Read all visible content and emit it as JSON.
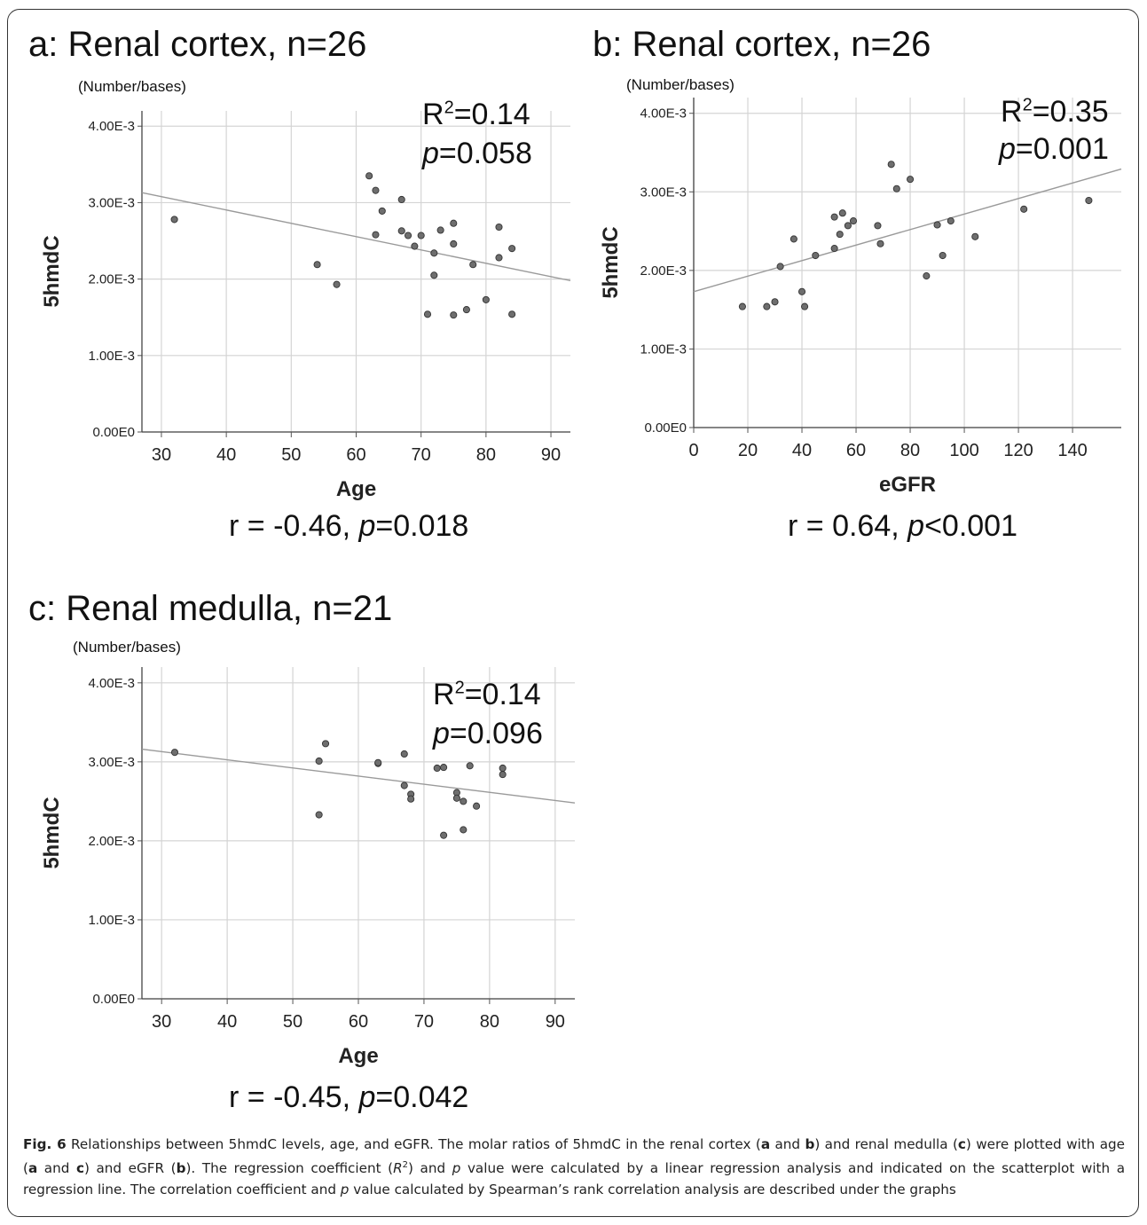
{
  "chart_data": [
    {
      "type": "scatter",
      "panel": "a",
      "title": "a: Renal cortex, n=26",
      "unit_label": "(Number/bases)",
      "xlabel": "Age",
      "ylabel": "5hmdC",
      "xlim": [
        27,
        93
      ],
      "ylim": [
        0,
        0.0042
      ],
      "xticks": [
        "30",
        "40",
        "50",
        "60",
        "70",
        "80",
        "90"
      ],
      "yticks": [
        "0.00E0",
        "1.00E-3",
        "2.00E-3",
        "3.00E-3",
        "4.00E-3"
      ],
      "grid": true,
      "r2_prefix": "R",
      "r2_sup": "2",
      "r2_value": "=0.14",
      "p_prefix": "p",
      "p_value": "=0.058",
      "corr_r": "r = -0.46, ",
      "corr_p_prefix": "p",
      "corr_p_value": "=0.018",
      "regression": {
        "x": [
          27,
          93
        ],
        "y": [
          0.00313,
          0.00198
        ]
      },
      "points": [
        [
          32,
          0.00278
        ],
        [
          54,
          0.00219
        ],
        [
          57,
          0.00193
        ],
        [
          62,
          0.00335
        ],
        [
          63,
          0.00316
        ],
        [
          63,
          0.00258
        ],
        [
          64,
          0.00289
        ],
        [
          67,
          0.00304
        ],
        [
          67,
          0.00263
        ],
        [
          68,
          0.00257
        ],
        [
          69,
          0.00243
        ],
        [
          70,
          0.00257
        ],
        [
          71,
          0.00154
        ],
        [
          72,
          0.00234
        ],
        [
          72,
          0.00205
        ],
        [
          73,
          0.00264
        ],
        [
          75,
          0.00273
        ],
        [
          75,
          0.00246
        ],
        [
          75,
          0.00153
        ],
        [
          77,
          0.0016
        ],
        [
          78,
          0.00219
        ],
        [
          80,
          0.00173
        ],
        [
          82,
          0.00268
        ],
        [
          82,
          0.00228
        ],
        [
          84,
          0.0024
        ],
        [
          84,
          0.00154
        ]
      ]
    },
    {
      "type": "scatter",
      "panel": "b",
      "title": "b: Renal cortex, n=26",
      "unit_label": "(Number/bases)",
      "xlabel": "eGFR",
      "ylabel": "5hmdC",
      "xlim": [
        0,
        158
      ],
      "ylim": [
        0,
        0.0042
      ],
      "xticks": [
        "0",
        "20",
        "40",
        "60",
        "80",
        "100",
        "120",
        "140"
      ],
      "yticks": [
        "0.00E0",
        "1.00E-3",
        "2.00E-3",
        "3.00E-3",
        "4.00E-3"
      ],
      "grid": true,
      "r2_prefix": "R",
      "r2_sup": "2",
      "r2_value": "=0.35",
      "p_prefix": "p",
      "p_value": "=0.001",
      "corr_r": "r = 0.64, ",
      "corr_p_prefix": "p",
      "corr_p_value": "<0.001",
      "regression": {
        "x": [
          0,
          158
        ],
        "y": [
          0.00173,
          0.00329
        ]
      },
      "points": [
        [
          18,
          0.00154
        ],
        [
          27,
          0.00154
        ],
        [
          30,
          0.0016
        ],
        [
          32,
          0.00205
        ],
        [
          37,
          0.0024
        ],
        [
          40,
          0.00173
        ],
        [
          41,
          0.00154
        ],
        [
          45,
          0.00219
        ],
        [
          52,
          0.00268
        ],
        [
          52,
          0.00228
        ],
        [
          54,
          0.00246
        ],
        [
          55,
          0.00273
        ],
        [
          57,
          0.00257
        ],
        [
          59,
          0.00263
        ],
        [
          68,
          0.00257
        ],
        [
          69,
          0.00234
        ],
        [
          73,
          0.00335
        ],
        [
          75,
          0.00304
        ],
        [
          80,
          0.00316
        ],
        [
          86,
          0.00193
        ],
        [
          90,
          0.00258
        ],
        [
          92,
          0.00219
        ],
        [
          95,
          0.00263
        ],
        [
          104,
          0.00243
        ],
        [
          122,
          0.00278
        ],
        [
          146,
          0.00289
        ]
      ]
    },
    {
      "type": "scatter",
      "panel": "c",
      "title": "c: Renal medulla, n=21",
      "unit_label": "(Number/bases)",
      "xlabel": "Age",
      "ylabel": "5hmdC",
      "xlim": [
        27,
        93
      ],
      "ylim": [
        0,
        0.0042
      ],
      "xticks": [
        "30",
        "40",
        "50",
        "60",
        "70",
        "80",
        "90"
      ],
      "yticks": [
        "0.00E0",
        "1.00E-3",
        "2.00E-3",
        "3.00E-3",
        "4.00E-3"
      ],
      "grid": true,
      "r2_prefix": "R",
      "r2_sup": "2",
      "r2_value": "=0.14",
      "p_prefix": "p",
      "p_value": "=0.096",
      "corr_r": "r = -0.45, ",
      "corr_p_prefix": "p",
      "corr_p_value": "=0.042",
      "regression": {
        "x": [
          27,
          93
        ],
        "y": [
          0.00316,
          0.00248
        ]
      },
      "points": [
        [
          32,
          0.00312
        ],
        [
          54,
          0.00301
        ],
        [
          54,
          0.00233
        ],
        [
          55,
          0.00323
        ],
        [
          63,
          0.00298
        ],
        [
          67,
          0.0031
        ],
        [
          67,
          0.0027
        ],
        [
          68,
          0.00259
        ],
        [
          68,
          0.00253
        ],
        [
          72,
          0.00292
        ],
        [
          73,
          0.00293
        ],
        [
          73,
          0.00207
        ],
        [
          75,
          0.00261
        ],
        [
          75,
          0.00254
        ],
        [
          76,
          0.0025
        ],
        [
          76,
          0.00214
        ],
        [
          77,
          0.00295
        ],
        [
          78,
          0.00244
        ],
        [
          82,
          0.00292
        ],
        [
          82,
          0.00284
        ],
        [
          63,
          0.00299
        ]
      ]
    }
  ],
  "caption": {
    "fig_label": "Fig. 6",
    "sentence1": " Relationships between 5hmdC levels, age, and eGFR. The molar ratios of 5hmdC in the renal cortex (",
    "a1": "a",
    "and1": " and ",
    "b1": "b",
    "part2": ") and renal medulla (",
    "c1": "c",
    "part3": ") were plotted with age (",
    "a2": "a",
    "and2": " and ",
    "c2": "c",
    "part4": ") and eGFR (",
    "b2": "b",
    "part5": "). The regression coefficient (",
    "r_sym": "R",
    "r_sup": "2",
    "part6": ") and ",
    "p1": "p",
    "part7": " value were calculated by a linear regression analysis and indicated on the scatterplot with a regression line. The correlation coefficient and ",
    "p2": "p",
    "part8": " value calculated by Spearman’s rank correlation analysis are described under the graphs"
  }
}
